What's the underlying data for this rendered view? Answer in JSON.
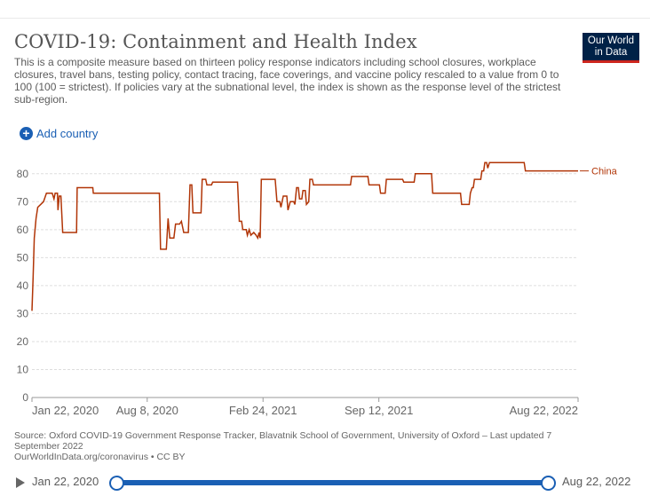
{
  "title": "COVID-19: Containment and Health Index",
  "subtitle": "This is a composite measure based on thirteen policy response indicators including school closures, workplace closures, travel bans, testing policy, contact tracing, face coverings, and vaccine policy rescaled to a value from 0 to 100 (100 = strictest). If policies vary at the subnational level, the index is shown as the response level of the strictest sub-region.",
  "logo": {
    "line1": "Our World",
    "line2": "in Data"
  },
  "add_country_label": "Add country",
  "footer": {
    "source": "Source: Oxford COVID-19 Government Response Tracker, Blavatnik School of Government, University of Oxford – Last updated 7 September 2022",
    "link": "OurWorldInData.org/coronavirus • CC BY"
  },
  "timeline": {
    "start": "Jan 22, 2020",
    "end": "Aug 22, 2022"
  },
  "colors": {
    "series": "#b13507",
    "grid": "#dddddd",
    "accent": "#1a5fb4"
  },
  "chart_data": {
    "type": "line",
    "title": "COVID-19: Containment and Health Index",
    "xlabel": "",
    "ylabel": "",
    "ylim": [
      0,
      85
    ],
    "xlim_days": [
      0,
      943
    ],
    "yticks": [
      0,
      10,
      20,
      30,
      40,
      50,
      60,
      70,
      80
    ],
    "xticks": [
      {
        "day": 0,
        "label": "Jan 22, 2020"
      },
      {
        "day": 199,
        "label": "Aug 8, 2020"
      },
      {
        "day": 399,
        "label": "Feb 24, 2021"
      },
      {
        "day": 599,
        "label": "Sep 12, 2021"
      },
      {
        "day": 943,
        "label": "Aug 22, 2022"
      }
    ],
    "series": [
      {
        "name": "China",
        "points": [
          [
            0,
            31
          ],
          [
            2,
            43
          ],
          [
            4,
            57
          ],
          [
            7,
            64
          ],
          [
            10,
            68
          ],
          [
            15,
            69
          ],
          [
            20,
            70
          ],
          [
            25,
            73
          ],
          [
            35,
            73
          ],
          [
            38,
            71
          ],
          [
            40,
            73
          ],
          [
            44,
            73
          ],
          [
            45,
            67
          ],
          [
            47,
            72
          ],
          [
            50,
            72
          ],
          [
            53,
            59
          ],
          [
            60,
            59
          ],
          [
            70,
            59
          ],
          [
            77,
            59
          ],
          [
            78,
            75
          ],
          [
            90,
            75
          ],
          [
            105,
            75
          ],
          [
            106,
            73
          ],
          [
            150,
            73
          ],
          [
            180,
            73
          ],
          [
            220,
            73
          ],
          [
            222,
            53
          ],
          [
            232,
            53
          ],
          [
            235,
            64
          ],
          [
            238,
            57
          ],
          [
            245,
            57
          ],
          [
            248,
            62
          ],
          [
            255,
            62
          ],
          [
            258,
            63
          ],
          [
            262,
            59
          ],
          [
            270,
            59
          ],
          [
            273,
            76
          ],
          [
            276,
            76
          ],
          [
            278,
            66
          ],
          [
            292,
            66
          ],
          [
            294,
            78
          ],
          [
            300,
            78
          ],
          [
            302,
            76
          ],
          [
            310,
            76
          ],
          [
            312,
            77
          ],
          [
            340,
            77
          ],
          [
            355,
            77
          ],
          [
            358,
            63
          ],
          [
            362,
            63
          ],
          [
            364,
            60
          ],
          [
            370,
            60
          ],
          [
            372,
            58
          ],
          [
            375,
            60
          ],
          [
            378,
            58
          ],
          [
            383,
            59
          ],
          [
            387,
            58
          ],
          [
            390,
            57
          ],
          [
            392,
            59
          ],
          [
            394,
            57
          ],
          [
            396,
            78
          ],
          [
            420,
            78
          ],
          [
            423,
            70
          ],
          [
            428,
            70
          ],
          [
            430,
            68
          ],
          [
            434,
            72
          ],
          [
            440,
            72
          ],
          [
            442,
            67
          ],
          [
            446,
            70
          ],
          [
            452,
            70
          ],
          [
            454,
            69
          ],
          [
            457,
            75
          ],
          [
            460,
            75
          ],
          [
            462,
            71
          ],
          [
            466,
            71
          ],
          [
            468,
            74
          ],
          [
            472,
            74
          ],
          [
            474,
            69
          ],
          [
            478,
            70
          ],
          [
            480,
            78
          ],
          [
            484,
            78
          ],
          [
            486,
            76
          ],
          [
            550,
            76
          ],
          [
            552,
            79
          ],
          [
            580,
            79
          ],
          [
            582,
            76
          ],
          [
            600,
            76
          ],
          [
            602,
            73
          ],
          [
            610,
            73
          ],
          [
            612,
            78
          ],
          [
            640,
            78
          ],
          [
            642,
            77
          ],
          [
            660,
            77
          ],
          [
            662,
            80
          ],
          [
            690,
            80
          ],
          [
            692,
            73
          ],
          [
            740,
            73
          ],
          [
            742,
            69
          ],
          [
            755,
            69
          ],
          [
            757,
            73
          ],
          [
            760,
            75
          ],
          [
            762,
            75
          ],
          [
            764,
            78
          ],
          [
            775,
            78
          ],
          [
            777,
            81
          ],
          [
            780,
            81
          ],
          [
            782,
            84
          ],
          [
            785,
            84
          ],
          [
            787,
            82
          ],
          [
            790,
            84
          ],
          [
            850,
            84
          ],
          [
            852,
            81
          ],
          [
            900,
            81
          ],
          [
            943,
            81
          ]
        ]
      }
    ]
  }
}
